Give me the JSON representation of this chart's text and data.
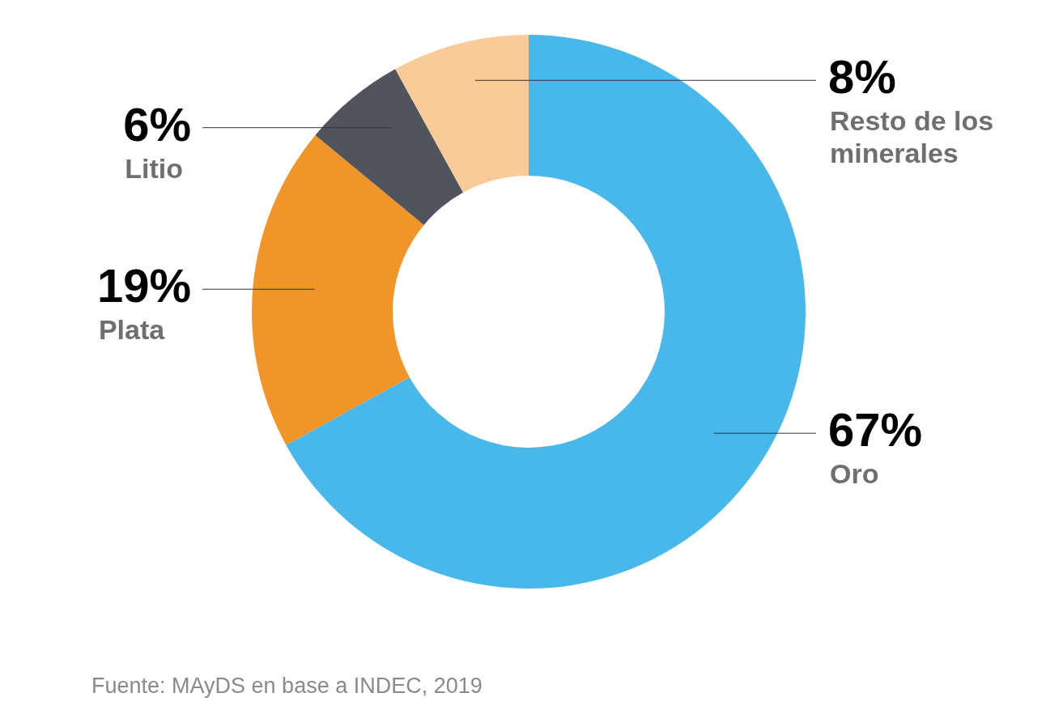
{
  "chart_data": {
    "type": "donut",
    "categories": [
      "Oro",
      "Plata",
      "Litio",
      "Resto de los minerales"
    ],
    "values": [
      67,
      19,
      6,
      8
    ],
    "colors": [
      "#47b8e9",
      "#f29528",
      "#50555d",
      "#f9cb99"
    ],
    "value_labels": [
      "67%",
      "19%",
      "6%",
      "8%"
    ],
    "annotations": [
      "Fuente: MAyDS en base a INDEC, 2019"
    ]
  }
}
